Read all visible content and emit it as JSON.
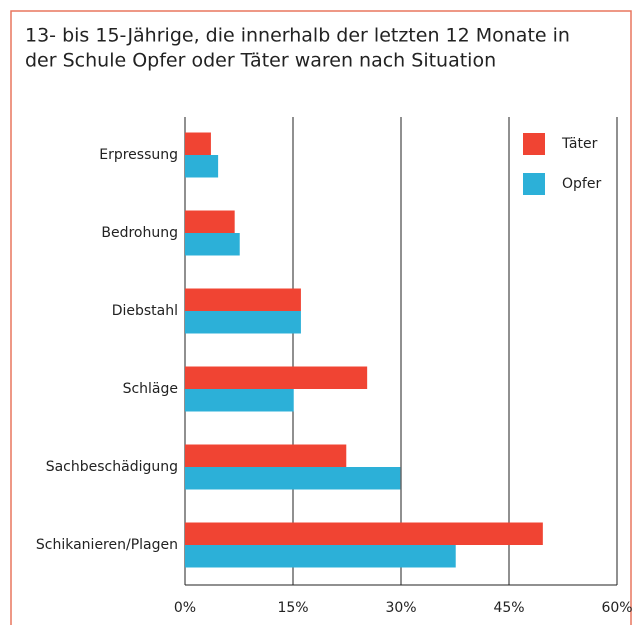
{
  "chart_data": {
    "type": "hbar",
    "title_lines": [
      "13- bis 15-Jährige, die innerhalb der letzten 12 Monate in",
      "der Schule Opfer oder Täter waren nach Situation"
    ],
    "categories": [
      "Erpressung",
      "Bedrohung",
      "Diebstahl",
      "Schläge",
      "Sachbeschädigung",
      "Schikanieren/Plagen"
    ],
    "series": [
      {
        "name": "Täter",
        "color": "#f04433",
        "values": [
          3.6,
          6.9,
          16.1,
          25.3,
          22.4,
          49.7
        ]
      },
      {
        "name": "Opfer",
        "color": "#2cb0d8",
        "values": [
          4.6,
          7.6,
          16.1,
          15.1,
          29.9,
          37.6
        ]
      }
    ],
    "xlim": [
      0,
      60
    ],
    "xticks": [
      {
        "value": 0,
        "label": "0%"
      },
      {
        "value": 15,
        "label": "15%"
      },
      {
        "value": 30,
        "label": "30%"
      },
      {
        "value": 45,
        "label": "45%"
      },
      {
        "value": 60,
        "label": "60%"
      }
    ],
    "grid": true,
    "legend": "top-right"
  }
}
